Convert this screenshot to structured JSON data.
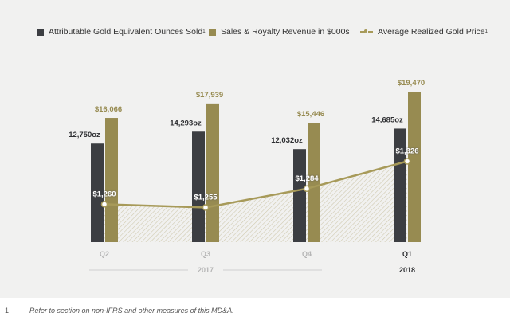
{
  "legend": [
    {
      "label": "Attributable Gold Equivalent Ounces Sold",
      "sup": "1",
      "color": "#3c3e42"
    },
    {
      "label": "Sales & Royalty Revenue in $000s",
      "sup": "",
      "color": "#978b51"
    },
    {
      "label": "Average Realized Gold Price",
      "sup": "1",
      "color": "#a79a59"
    }
  ],
  "footnote": {
    "number": "1",
    "text": "Refer to section on non-IFRS and other measures of this MD&A."
  },
  "chart_data": {
    "type": "bar",
    "categories": [
      "Q2",
      "Q3",
      "Q4",
      "Q1"
    ],
    "year_groups": [
      {
        "label": "2017",
        "categories": [
          "Q2",
          "Q3",
          "Q4"
        ]
      },
      {
        "label": "2018",
        "categories": [
          "Q1"
        ]
      }
    ],
    "series": [
      {
        "name": "Attributable Gold Equivalent Ounces Sold",
        "values": [
          12750,
          14293,
          12032,
          14685
        ],
        "labels": [
          "12,750oz",
          "14,293oz",
          "12,032oz",
          "14,685oz"
        ],
        "color": "#3c3e42"
      },
      {
        "name": "Sales & Royalty Revenue in $000s",
        "values": [
          16066,
          17939,
          15446,
          19470
        ],
        "labels": [
          "$16,066",
          "$17,939",
          "$15,446",
          "$19,470"
        ],
        "color": "#978b51"
      }
    ],
    "line_series": {
      "name": "Average Realized Gold Price",
      "values": [
        1260,
        1255,
        1284,
        1326
      ],
      "labels": [
        "$1,260",
        "$1,255",
        "$1,284",
        "$1,326"
      ],
      "color": "#a79a59"
    }
  }
}
